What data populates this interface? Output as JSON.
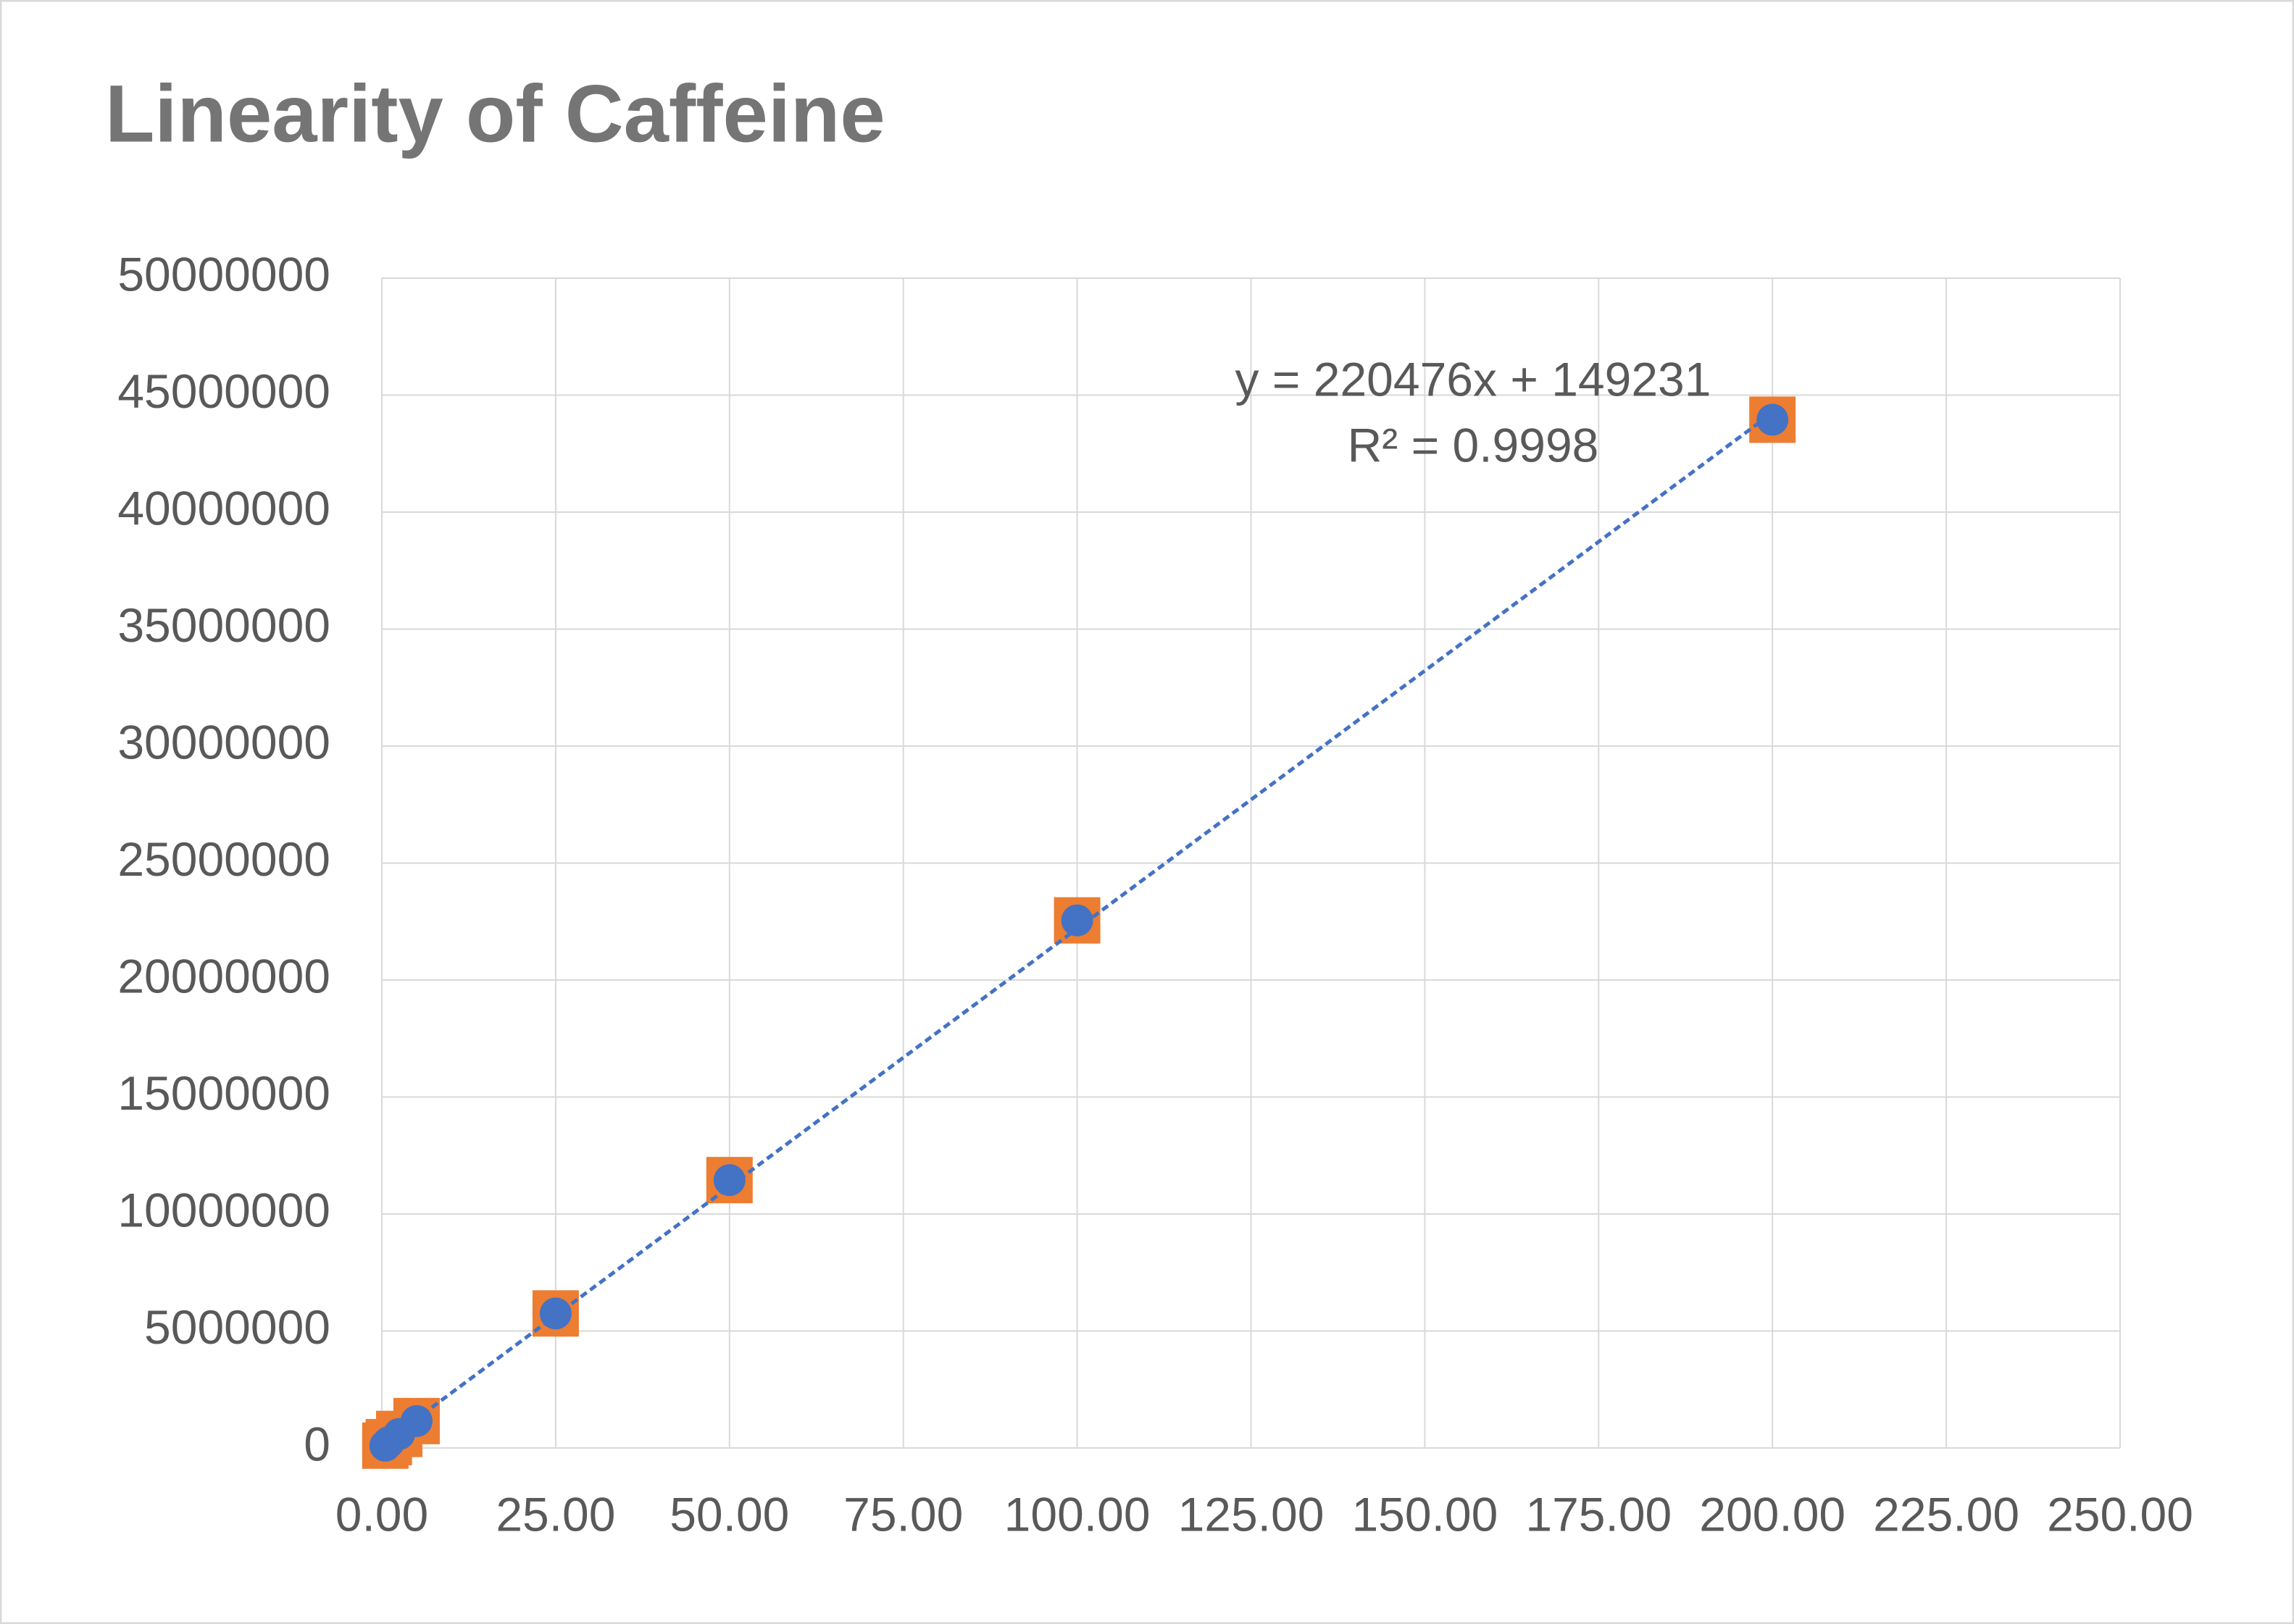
{
  "chart_data": {
    "type": "scatter",
    "title": "Linearity of Caffeine",
    "series": [
      {
        "color": "#ED7D31",
        "marker": "square",
        "x": [
          0.5,
          1,
          2.5,
          5,
          25,
          50,
          100,
          200
        ],
        "values": [
          100000,
          250000,
          600000,
          1150000,
          5750000,
          11450000,
          22550000,
          43950000
        ]
      },
      {
        "color": "#4472C4",
        "marker": "circle",
        "x": [
          0.5,
          1,
          2.5,
          5,
          25,
          50,
          100,
          200
        ],
        "values": [
          100000,
          250000,
          600000,
          1150000,
          5750000,
          11450000,
          22550000,
          43950000
        ]
      }
    ],
    "trendline": {
      "color": "#4472C4",
      "slope": 220476,
      "intercept": 149231,
      "label": "y = 220476x + 149231",
      "r2_label": "R² = 0.9998"
    },
    "xlim": [
      0,
      250
    ],
    "xticks": [
      {
        "value": 0,
        "label": "0.00"
      },
      {
        "value": 25,
        "label": "25.00"
      },
      {
        "value": 50,
        "label": "50.00"
      },
      {
        "value": 75,
        "label": "75.00"
      },
      {
        "value": 100,
        "label": "100.00"
      },
      {
        "value": 125,
        "label": "125.00"
      },
      {
        "value": 150,
        "label": "150.00"
      },
      {
        "value": 175,
        "label": "175.00"
      },
      {
        "value": 200,
        "label": "200.00"
      },
      {
        "value": 225,
        "label": "225.00"
      },
      {
        "value": 250,
        "label": "250.00"
      }
    ],
    "ylim": [
      0,
      50000000
    ],
    "yticks": [
      0,
      5000000,
      10000000,
      15000000,
      20000000,
      25000000,
      30000000,
      35000000,
      40000000,
      45000000,
      50000000
    ],
    "grid": true
  }
}
